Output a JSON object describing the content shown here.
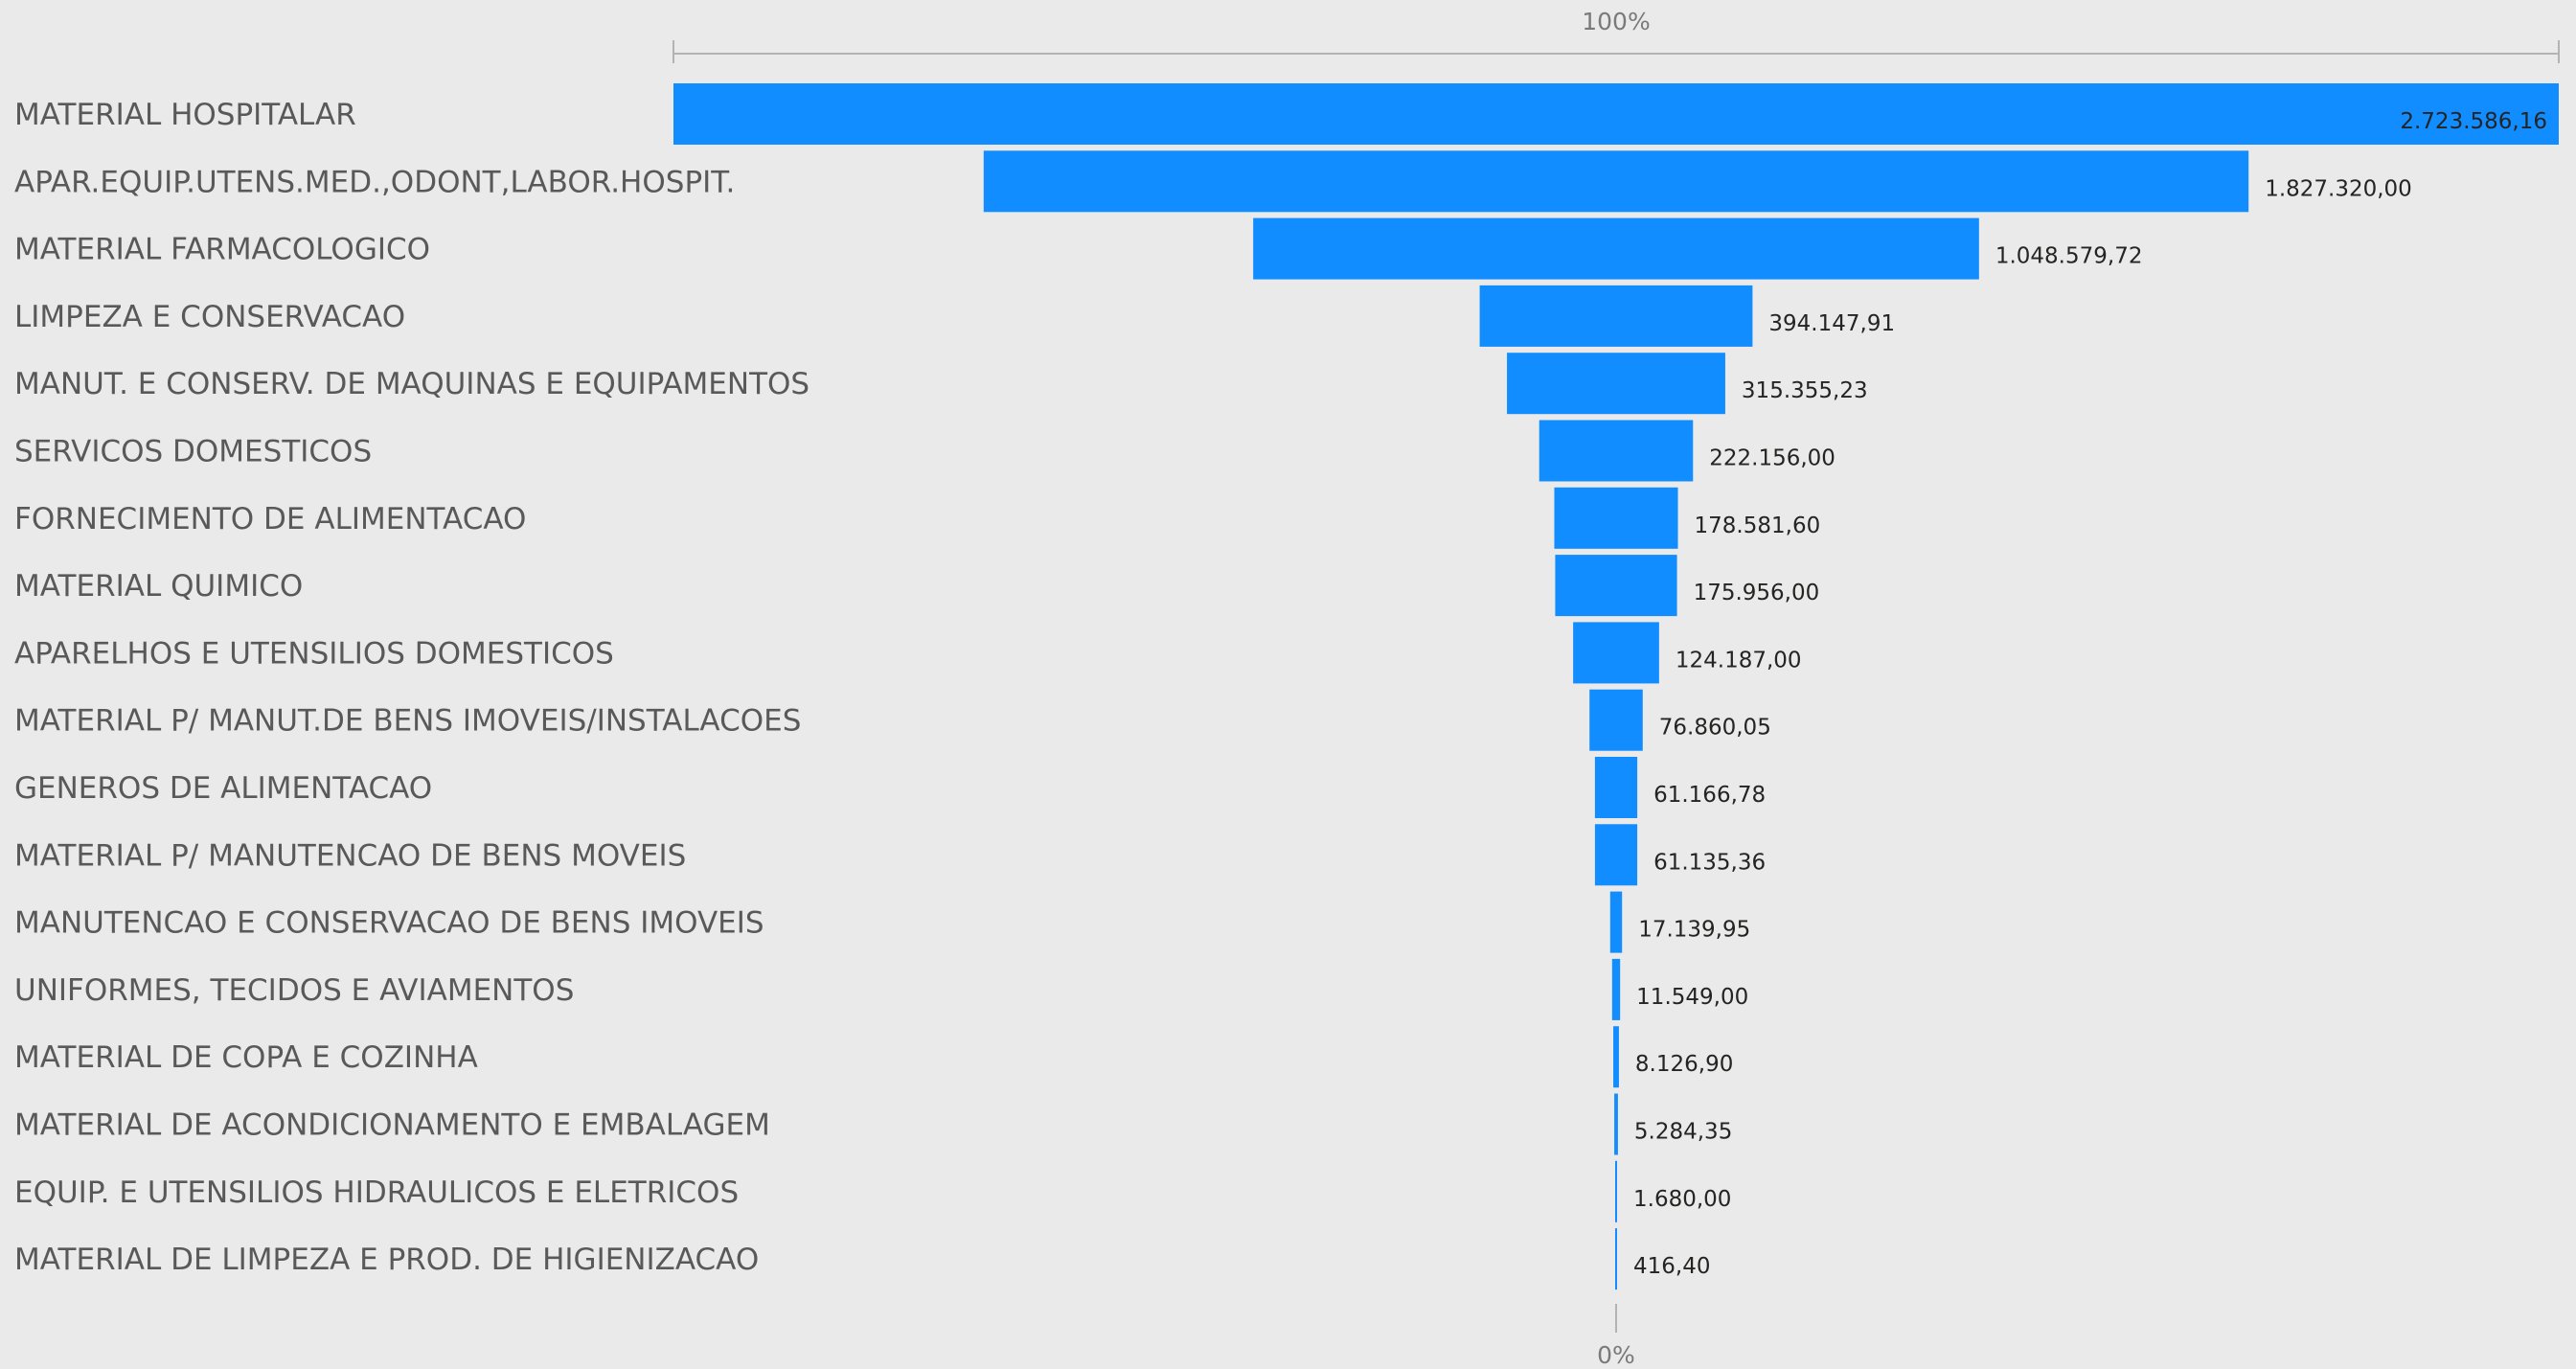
{
  "chart_data": {
    "type": "bar",
    "subtype": "funnel",
    "top_axis_label": "100%",
    "bottom_axis_label": "0%",
    "bar_color": "#118dff",
    "value_label_color_inside": "#252423",
    "categories": [
      "MATERIAL HOSPITALAR",
      "APAR.EQUIP.UTENS.MED.,ODONT,LABOR.HOSPIT.",
      "MATERIAL FARMACOLOGICO",
      "LIMPEZA E CONSERVACAO",
      "MANUT. E CONSERV. DE MAQUINAS E EQUIPAMENTOS",
      "SERVICOS DOMESTICOS",
      "FORNECIMENTO DE ALIMENTACAO",
      "MATERIAL QUIMICO",
      "APARELHOS E UTENSILIOS DOMESTICOS",
      "MATERIAL P/ MANUT.DE BENS IMOVEIS/INSTALACOES",
      "GENEROS DE ALIMENTACAO",
      "MATERIAL P/ MANUTENCAO DE BENS MOVEIS",
      "MANUTENCAO E CONSERVACAO DE BENS IMOVEIS",
      "UNIFORMES, TECIDOS E AVIAMENTOS",
      "MATERIAL DE COPA E COZINHA",
      "MATERIAL DE ACONDICIONAMENTO E EMBALAGEM",
      "EQUIP. E UTENSILIOS HIDRAULICOS E ELETRICOS",
      "MATERIAL DE LIMPEZA E PROD. DE HIGIENIZACAO"
    ],
    "values": [
      2723586.16,
      1827320.0,
      1048579.72,
      394147.91,
      315355.23,
      222156.0,
      178581.6,
      175956.0,
      124187.0,
      76860.05,
      61166.78,
      61135.36,
      17139.95,
      11549.0,
      8126.9,
      5284.35,
      1680.0,
      416.4
    ],
    "value_labels": [
      "2.723.586,16",
      "1.827.320,00",
      "1.048.579,72",
      "394.147,91",
      "315.355,23",
      "222.156,00",
      "178.581,60",
      "175.956,00",
      "124.187,00",
      "76.860,05",
      "61.166,78",
      "61.135,36",
      "17.139,95",
      "11.549,00",
      "8.126,90",
      "5.284,35",
      "1.680,00",
      "416,40"
    ]
  }
}
